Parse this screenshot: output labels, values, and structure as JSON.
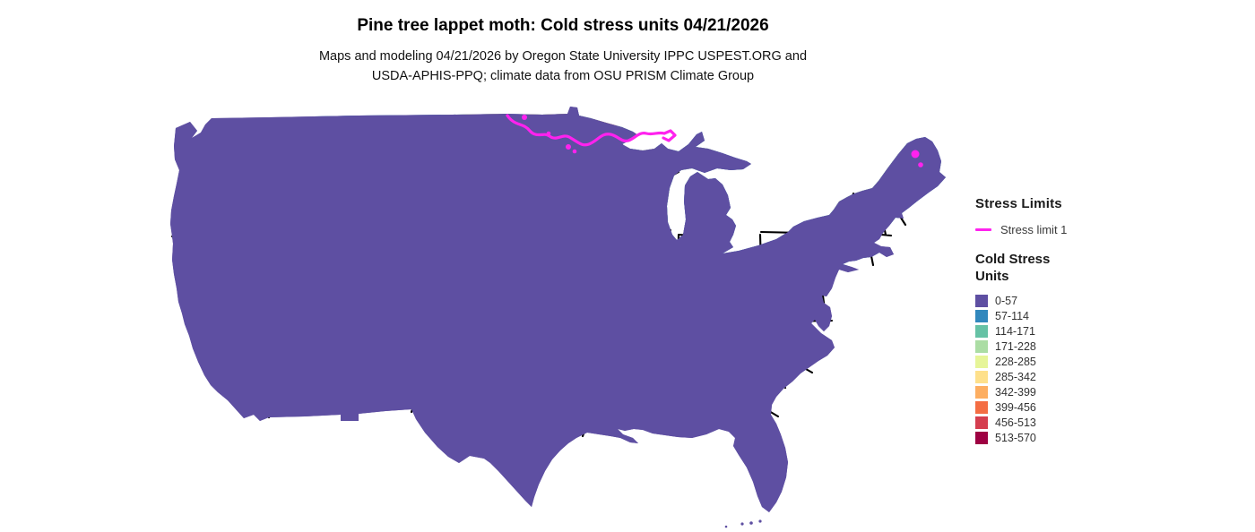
{
  "header": {
    "title": "Pine tree lappet moth: Cold stress units 04/21/2026",
    "subtitle_line1": "Maps and modeling 04/21/2026 by Oregon State University IPPC USPEST.ORG and",
    "subtitle_line2": "USDA-APHIS-PPQ; climate data from OSU PRISM Climate Group"
  },
  "legend": {
    "stress_limits_heading": "Stress Limits",
    "stress_limit_label": "Stress limit 1",
    "stress_limit_color": "#ff22ee",
    "cold_stress_heading_line1": "Cold Stress",
    "cold_stress_heading_line2": "Units",
    "classes": [
      {
        "label": "0-57",
        "color": "#5e4fa2"
      },
      {
        "label": "57-114",
        "color": "#3288bd"
      },
      {
        "label": "114-171",
        "color": "#66c2a5"
      },
      {
        "label": "171-228",
        "color": "#abdda4"
      },
      {
        "label": "228-285",
        "color": "#e6f598"
      },
      {
        "label": "285-342",
        "color": "#fee08b"
      },
      {
        "label": "342-399",
        "color": "#fdae61"
      },
      {
        "label": "399-456",
        "color": "#f46d43"
      },
      {
        "label": "456-513",
        "color": "#d53e4f"
      },
      {
        "label": "513-570",
        "color": "#9e0142"
      }
    ]
  },
  "map": {
    "region": "Continental United States",
    "border_color": "#000000",
    "background_color": "#ffffff"
  }
}
